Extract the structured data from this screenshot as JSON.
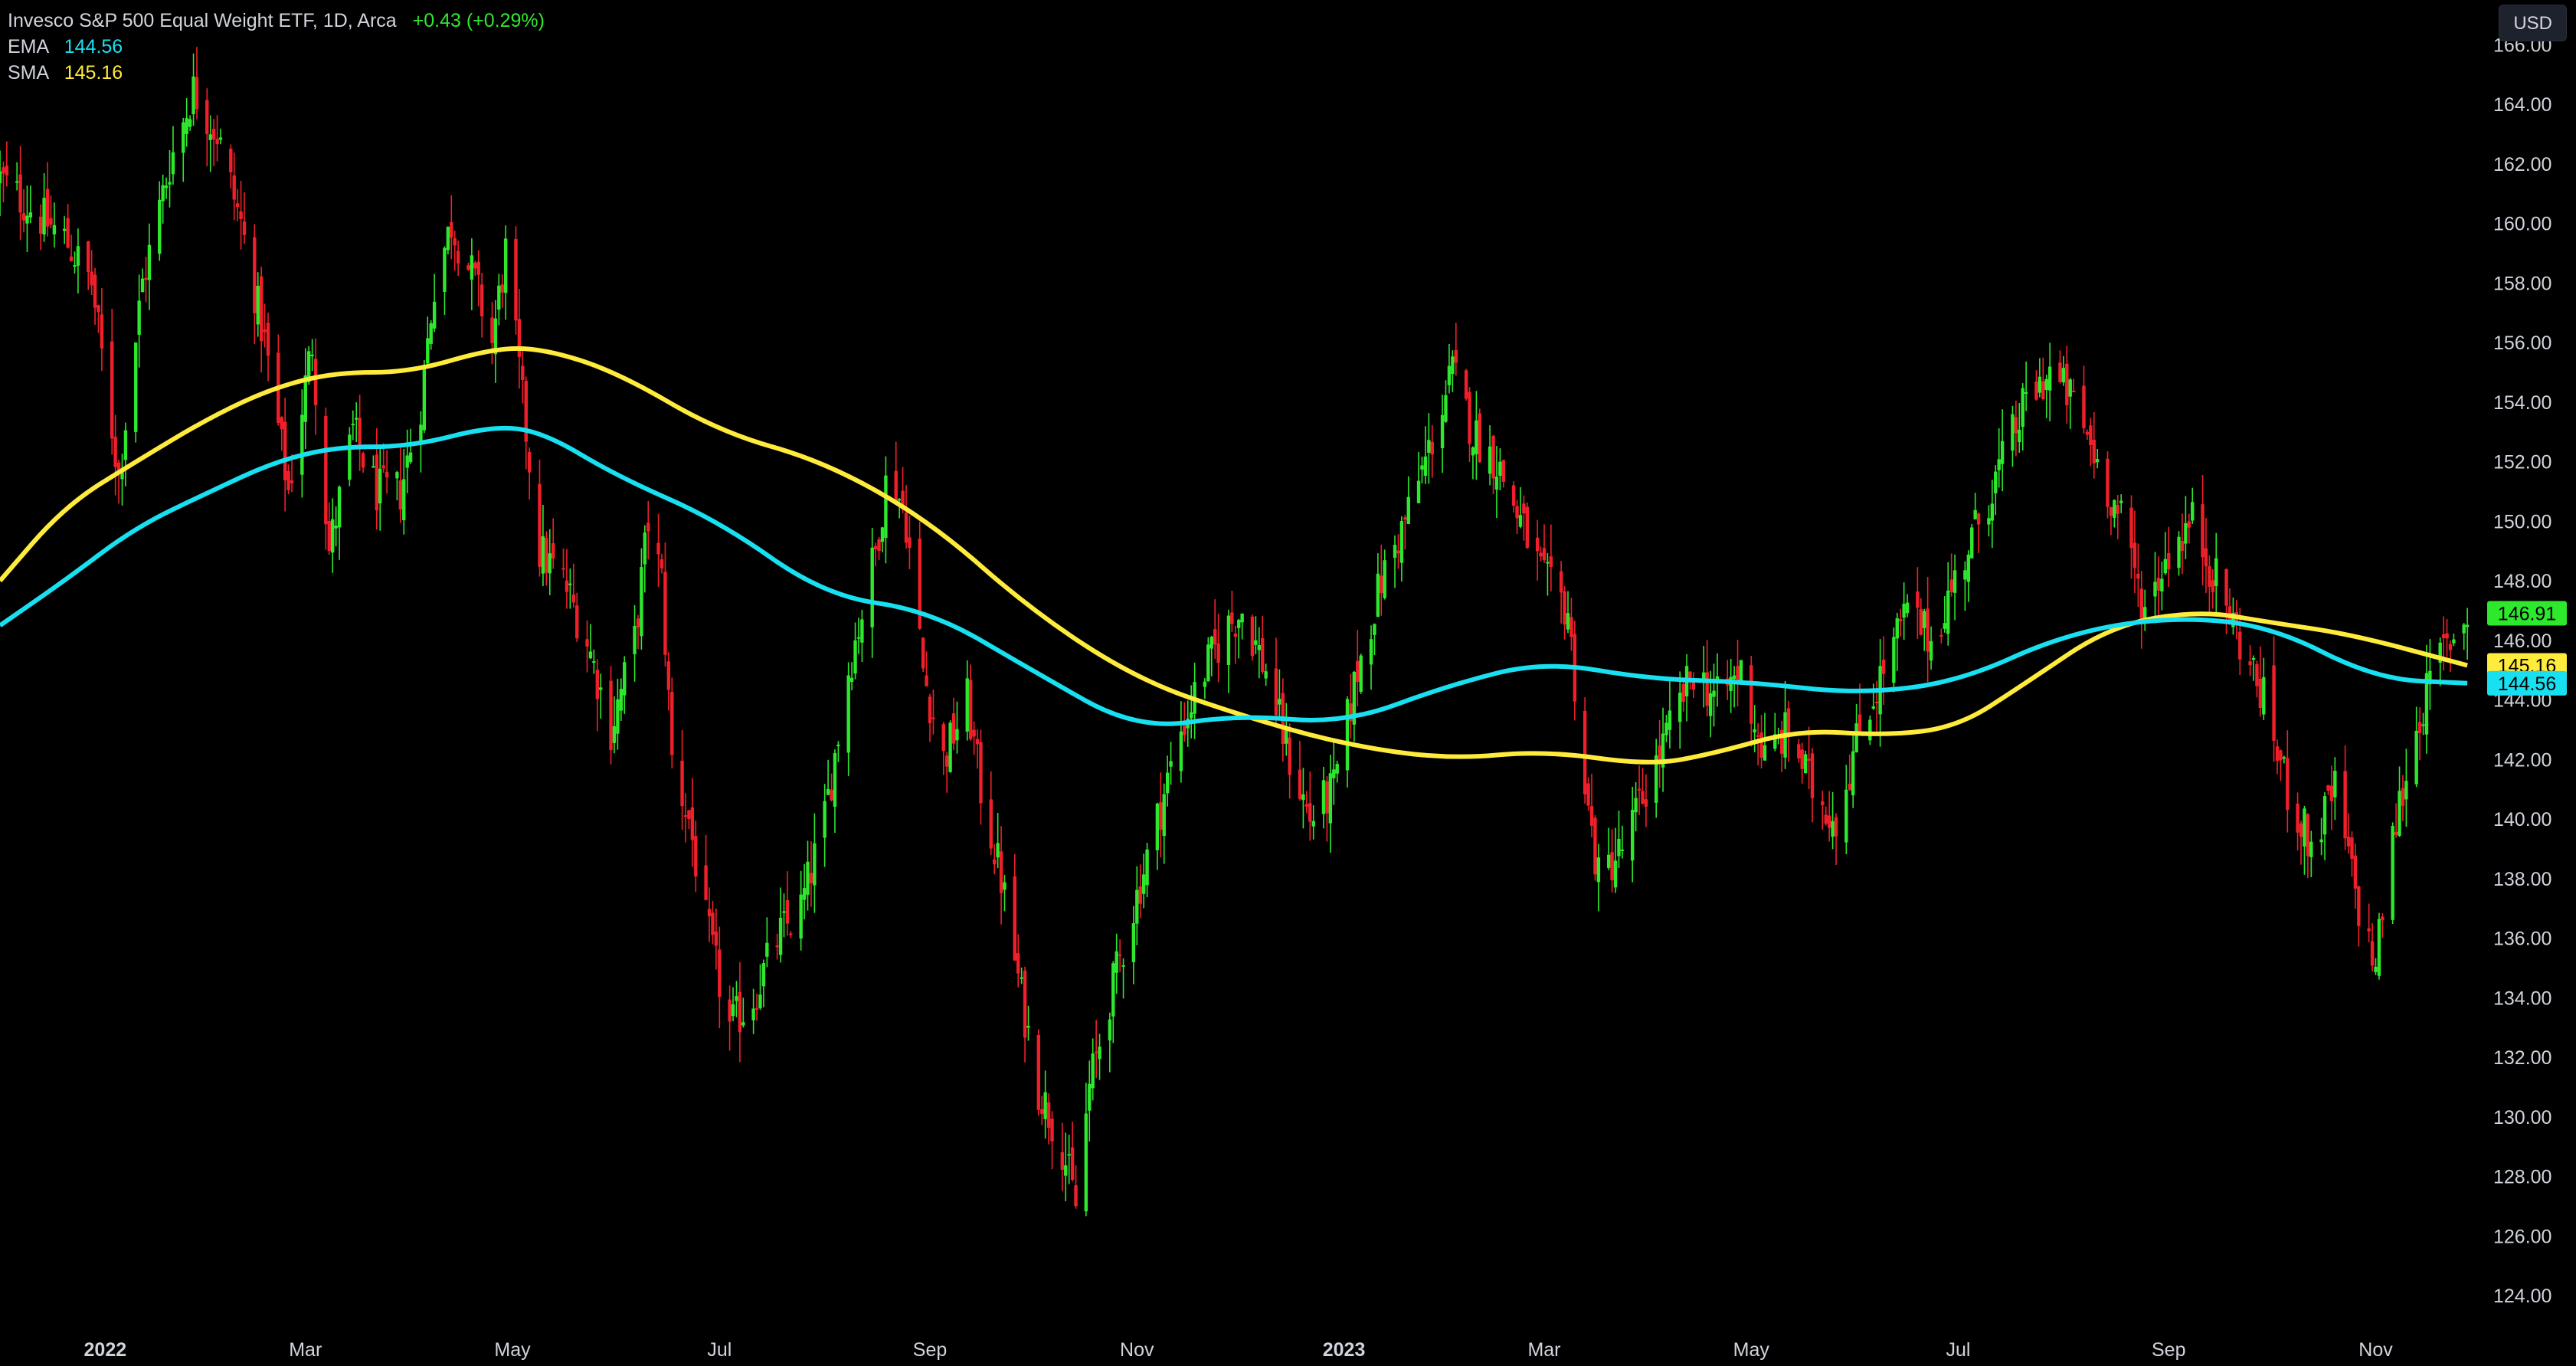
{
  "legend": {
    "title": "Invesco S&P 500 Equal Weight ETF, 1D, Arca",
    "change": "+0.43 (+0.29%)",
    "ema_label": "EMA",
    "ema_value": "144.56",
    "sma_label": "SMA",
    "sma_value": "145.16"
  },
  "currency": "USD",
  "colors": {
    "up": "#2ee82e",
    "down": "#f0202a",
    "ema": "#18e0f0",
    "sma": "#ffeb3b",
    "price_tag": "#2ee82e"
  },
  "chart_data": {
    "type": "candlestick",
    "ylim": [
      123,
      167.5
    ],
    "xlim": [
      "2021-12-01",
      "2023-11-30"
    ],
    "y_ticks": [
      "124.00",
      "126.00",
      "128.00",
      "130.00",
      "132.00",
      "134.00",
      "136.00",
      "138.00",
      "140.00",
      "142.00",
      "144.00",
      "146.00",
      "148.00",
      "150.00",
      "152.00",
      "154.00",
      "156.00",
      "158.00",
      "160.00",
      "162.00",
      "164.00",
      "166.00"
    ],
    "x_ticks": [
      {
        "label": "2022",
        "date": "2022-01-01",
        "bold": true
      },
      {
        "label": "Mar",
        "date": "2022-03-01"
      },
      {
        "label": "May",
        "date": "2022-05-01"
      },
      {
        "label": "Jul",
        "date": "2022-07-01"
      },
      {
        "label": "Sep",
        "date": "2022-09-01"
      },
      {
        "label": "Nov",
        "date": "2022-11-01"
      },
      {
        "label": "2023",
        "date": "2023-01-01",
        "bold": true
      },
      {
        "label": "Mar",
        "date": "2023-03-01"
      },
      {
        "label": "May",
        "date": "2023-05-01"
      },
      {
        "label": "Jul",
        "date": "2023-07-01"
      },
      {
        "label": "Sep",
        "date": "2023-09-01"
      },
      {
        "label": "Nov",
        "date": "2023-11-01"
      }
    ],
    "price_path": [
      [
        "2021-12-01",
        161.5
      ],
      [
        "2021-12-10",
        160.5
      ],
      [
        "2021-12-20",
        159.5
      ],
      [
        "2021-12-28",
        158
      ],
      [
        "2022-01-05",
        151.5
      ],
      [
        "2022-01-12",
        158
      ],
      [
        "2022-01-20",
        162
      ],
      [
        "2022-01-27",
        164.5
      ],
      [
        "2022-02-03",
        163
      ],
      [
        "2022-02-10",
        160
      ],
      [
        "2022-02-17",
        156
      ],
      [
        "2022-02-24",
        151
      ],
      [
        "2022-03-03",
        156
      ],
      [
        "2022-03-08",
        149
      ],
      [
        "2022-03-15",
        153
      ],
      [
        "2022-03-22",
        151
      ],
      [
        "2022-03-29",
        151
      ],
      [
        "2022-04-04",
        154
      ],
      [
        "2022-04-08",
        158
      ],
      [
        "2022-04-13",
        160
      ],
      [
        "2022-04-20",
        158
      ],
      [
        "2022-04-25",
        156
      ],
      [
        "2022-04-29",
        159
      ],
      [
        "2022-05-04",
        154
      ],
      [
        "2022-05-09",
        149
      ],
      [
        "2022-05-16",
        148
      ],
      [
        "2022-05-23",
        146
      ],
      [
        "2022-05-30",
        143
      ],
      [
        "2022-06-06",
        146
      ],
      [
        "2022-06-10",
        150
      ],
      [
        "2022-06-14",
        148
      ],
      [
        "2022-06-17",
        142
      ],
      [
        "2022-06-22",
        140
      ],
      [
        "2022-06-27",
        136.5
      ],
      [
        "2022-07-04",
        133
      ],
      [
        "2022-07-11",
        134
      ],
      [
        "2022-07-18",
        136
      ],
      [
        "2022-07-25",
        137
      ],
      [
        "2022-08-01",
        140
      ],
      [
        "2022-08-08",
        145
      ],
      [
        "2022-08-16",
        149
      ],
      [
        "2022-08-20",
        152
      ],
      [
        "2022-08-25",
        150
      ],
      [
        "2022-08-30",
        145
      ],
      [
        "2022-09-05",
        142
      ],
      [
        "2022-09-12",
        144
      ],
      [
        "2022-09-16",
        141
      ],
      [
        "2022-09-22",
        138
      ],
      [
        "2022-09-28",
        134
      ],
      [
        "2022-10-03",
        131
      ],
      [
        "2022-10-10",
        129
      ],
      [
        "2022-10-14",
        127
      ],
      [
        "2022-10-18",
        131
      ],
      [
        "2022-10-24",
        134
      ],
      [
        "2022-10-31",
        137
      ],
      [
        "2022-11-07",
        140
      ],
      [
        "2022-11-14",
        143
      ],
      [
        "2022-11-21",
        145
      ],
      [
        "2022-11-28",
        146.5
      ],
      [
        "2022-12-02",
        147
      ],
      [
        "2022-12-09",
        145
      ],
      [
        "2022-12-16",
        142
      ],
      [
        "2022-12-22",
        140
      ],
      [
        "2022-12-29",
        141
      ],
      [
        "2023-01-05",
        145
      ],
      [
        "2023-01-12",
        148
      ],
      [
        "2023-01-19",
        150
      ],
      [
        "2023-01-25",
        152
      ],
      [
        "2023-02-02",
        155
      ],
      [
        "2023-02-08",
        153
      ],
      [
        "2023-02-15",
        152
      ],
      [
        "2023-02-22",
        150
      ],
      [
        "2023-03-01",
        148
      ],
      [
        "2023-03-08",
        147
      ],
      [
        "2023-03-13",
        141
      ],
      [
        "2023-03-17",
        138
      ],
      [
        "2023-03-24",
        139
      ],
      [
        "2023-03-31",
        141
      ],
      [
        "2023-04-07",
        143
      ],
      [
        "2023-04-14",
        145
      ],
      [
        "2023-04-21",
        144
      ],
      [
        "2023-04-28",
        145
      ],
      [
        "2023-05-05",
        142
      ],
      [
        "2023-05-12",
        143
      ],
      [
        "2023-05-19",
        141
      ],
      [
        "2023-05-26",
        140
      ],
      [
        "2023-06-02",
        143
      ],
      [
        "2023-06-09",
        145
      ],
      [
        "2023-06-16",
        147
      ],
      [
        "2023-06-23",
        146
      ],
      [
        "2023-06-30",
        148
      ],
      [
        "2023-07-07",
        150
      ],
      [
        "2023-07-14",
        152
      ],
      [
        "2023-07-21",
        154
      ],
      [
        "2023-07-28",
        155
      ],
      [
        "2023-08-04",
        154
      ],
      [
        "2023-08-11",
        152
      ],
      [
        "2023-08-18",
        150
      ],
      [
        "2023-08-25",
        147
      ],
      [
        "2023-09-01",
        149
      ],
      [
        "2023-09-08",
        150
      ],
      [
        "2023-09-15",
        148
      ],
      [
        "2023-09-22",
        146
      ],
      [
        "2023-09-29",
        144
      ],
      [
        "2023-10-06",
        141
      ],
      [
        "2023-10-13",
        139
      ],
      [
        "2023-10-20",
        141
      ],
      [
        "2023-10-27",
        137
      ],
      [
        "2023-11-01",
        135
      ],
      [
        "2023-11-04",
        138
      ],
      [
        "2023-11-08",
        140.5
      ],
      [
        "2023-11-14",
        143.5
      ],
      [
        "2023-11-20",
        145.5
      ],
      [
        "2023-11-28",
        146.9
      ]
    ],
    "sma_path": [
      [
        "2021-12-01",
        148
      ],
      [
        "2021-12-20",
        150.5
      ],
      [
        "2022-01-10",
        152
      ],
      [
        "2022-02-01",
        153.5
      ],
      [
        "2022-02-20",
        154.5
      ],
      [
        "2022-03-10",
        155
      ],
      [
        "2022-04-01",
        155
      ],
      [
        "2022-04-25",
        155.8
      ],
      [
        "2022-05-10",
        155.8
      ],
      [
        "2022-06-01",
        155
      ],
      [
        "2022-07-01",
        153
      ],
      [
        "2022-08-01",
        152
      ],
      [
        "2022-09-01",
        150
      ],
      [
        "2022-10-01",
        147
      ],
      [
        "2022-11-01",
        144.7
      ],
      [
        "2022-12-01",
        143.5
      ],
      [
        "2023-01-01",
        142.5
      ],
      [
        "2023-02-01",
        142
      ],
      [
        "2023-03-01",
        142.3
      ],
      [
        "2023-04-01",
        141.8
      ],
      [
        "2023-04-20",
        142.2
      ],
      [
        "2023-05-15",
        143
      ],
      [
        "2023-06-10",
        142.8
      ],
      [
        "2023-07-01",
        143.1
      ],
      [
        "2023-07-20",
        144.5
      ],
      [
        "2023-08-15",
        146.5
      ],
      [
        "2023-09-10",
        147
      ],
      [
        "2023-10-01",
        146.6
      ],
      [
        "2023-10-25",
        146.2
      ],
      [
        "2023-11-28",
        145.16
      ]
    ],
    "ema_path": [
      [
        "2021-12-01",
        146.5
      ],
      [
        "2021-12-20",
        148
      ],
      [
        "2022-01-10",
        149.8
      ],
      [
        "2022-02-01",
        151
      ],
      [
        "2022-02-20",
        152
      ],
      [
        "2022-03-10",
        152.5
      ],
      [
        "2022-04-01",
        152.5
      ],
      [
        "2022-04-25",
        153.2
      ],
      [
        "2022-05-10",
        153
      ],
      [
        "2022-06-01",
        151.5
      ],
      [
        "2022-07-01",
        150
      ],
      [
        "2022-08-01",
        147.5
      ],
      [
        "2022-09-01",
        147
      ],
      [
        "2022-10-01",
        145
      ],
      [
        "2022-11-01",
        143
      ],
      [
        "2022-12-01",
        143.5
      ],
      [
        "2023-01-01",
        143.2
      ],
      [
        "2023-02-01",
        144.5
      ],
      [
        "2023-03-01",
        145.3
      ],
      [
        "2023-04-01",
        144.7
      ],
      [
        "2023-05-01",
        144.6
      ],
      [
        "2023-06-01",
        144.2
      ],
      [
        "2023-07-01",
        144.6
      ],
      [
        "2023-08-01",
        146.2
      ],
      [
        "2023-09-01",
        146.8
      ],
      [
        "2023-10-01",
        146.5
      ],
      [
        "2023-11-01",
        144.7
      ],
      [
        "2023-11-28",
        144.56
      ]
    ],
    "last_price": {
      "value": 146.91,
      "label": "146.91"
    },
    "sma_last": {
      "value": 145.16,
      "label": "145.16"
    },
    "ema_last": {
      "value": 144.56,
      "label": "144.56"
    }
  }
}
